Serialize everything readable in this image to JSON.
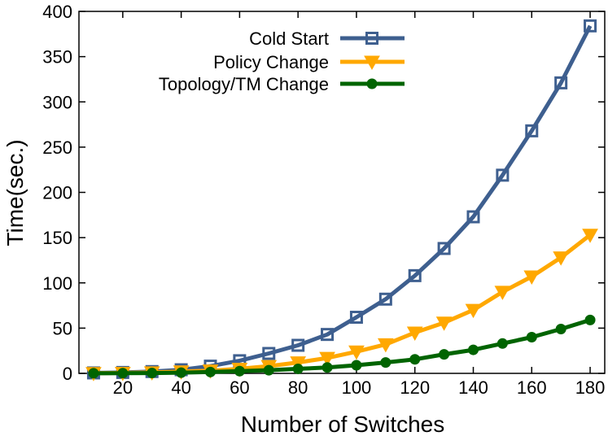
{
  "chart_data": {
    "type": "line",
    "title": "",
    "xlabel": "Number of Switches",
    "ylabel": "Time(sec.)",
    "xlim": [
      5,
      185
    ],
    "ylim": [
      0,
      400
    ],
    "x_ticks": [
      20,
      40,
      60,
      80,
      100,
      120,
      140,
      160,
      180
    ],
    "y_ticks": [
      0,
      50,
      100,
      150,
      200,
      250,
      300,
      350,
      400
    ],
    "grid": false,
    "legend_position": "top-left",
    "x": [
      10,
      20,
      30,
      40,
      50,
      60,
      70,
      80,
      90,
      100,
      110,
      120,
      130,
      140,
      150,
      160,
      170,
      180
    ],
    "series": [
      {
        "name": "Cold Start",
        "color": "#3e5f8f",
        "marker": "square",
        "values": [
          0.5,
          1,
          2,
          4,
          8,
          14,
          22,
          31,
          43,
          62,
          82,
          108,
          138,
          173,
          219,
          268,
          321,
          384
        ]
      },
      {
        "name": "Policy Change",
        "color": "#ffa800",
        "marker": "triangle-down",
        "values": [
          0.2,
          0.5,
          1,
          2,
          3,
          5,
          8,
          12,
          17,
          24,
          32,
          45,
          56,
          70,
          90,
          107,
          128,
          153
        ]
      },
      {
        "name": "Topology/TM Change",
        "color": "#006400",
        "marker": "circle",
        "values": [
          0.1,
          0.2,
          0.4,
          0.8,
          1.5,
          2.5,
          3.5,
          5,
          6.5,
          9,
          12,
          15.5,
          21,
          26,
          33,
          40,
          49,
          59
        ]
      }
    ]
  }
}
